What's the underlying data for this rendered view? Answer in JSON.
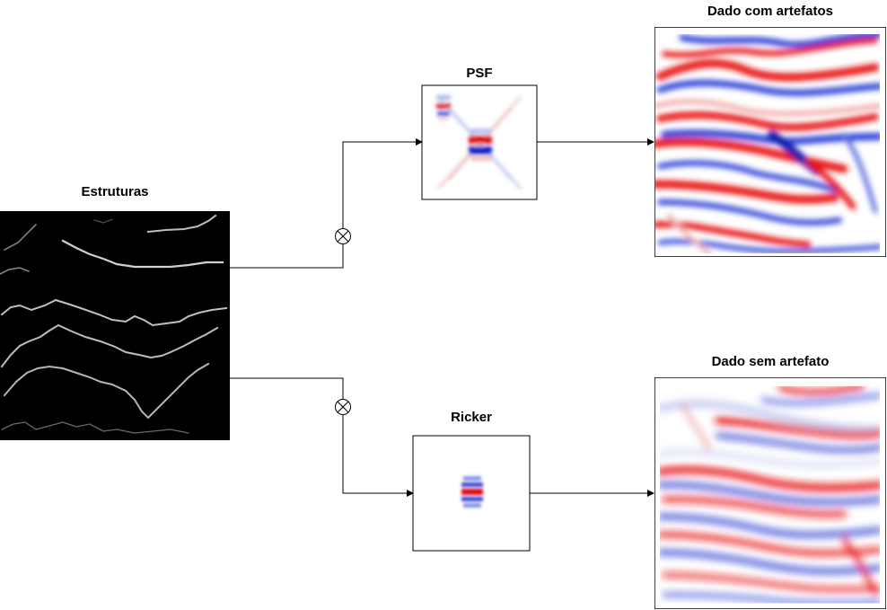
{
  "labels": {
    "estruturas": "Estruturas",
    "psf": "PSF",
    "ricker": "Ricker",
    "dado_com": "Dado com artefatos",
    "dado_sem": "Dado sem artefato"
  },
  "colors": {
    "arrow": "#000000",
    "positive": "#e00000",
    "negative": "#1a2fd0",
    "background": "#ffffff",
    "structure_bg": "#000000",
    "structure_line": "#c8c8c8"
  }
}
